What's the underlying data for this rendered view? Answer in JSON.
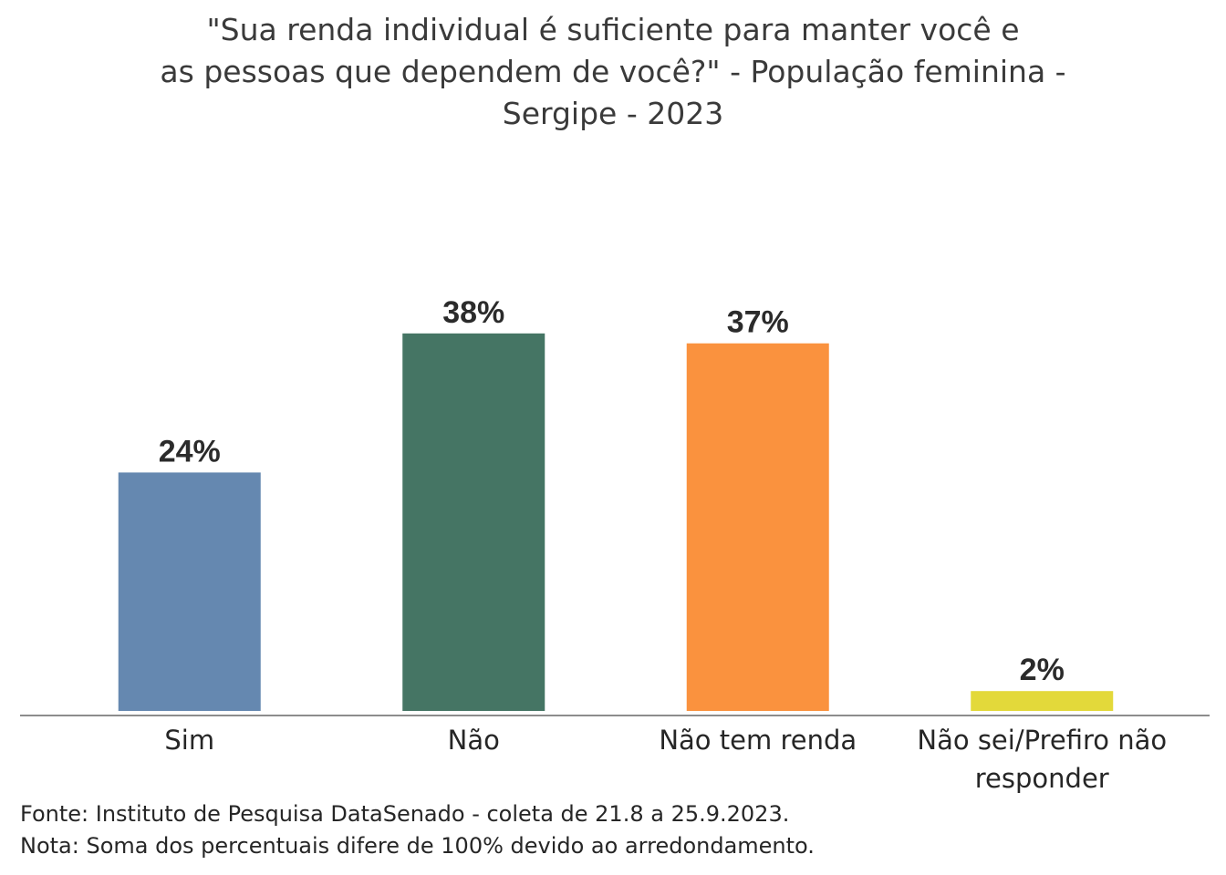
{
  "chart_data": {
    "type": "bar",
    "title_lines": [
      "\"Sua renda individual é suficiente para manter você e",
      "as pessoas que dependem de você?\" - População feminina -",
      "Sergipe - 2023"
    ],
    "categories": [
      [
        "Sim"
      ],
      [
        "Não"
      ],
      [
        "Não tem renda"
      ],
      [
        "Não sei/Prefiro não",
        "responder"
      ]
    ],
    "values": [
      24,
      38,
      37,
      2
    ],
    "value_labels": [
      "24%",
      "38%",
      "37%",
      "2%"
    ],
    "colors": [
      "#6588b0",
      "#457564",
      "#fa923e",
      "#e3d93a"
    ],
    "ylim": [
      0,
      40
    ],
    "xlabel": "",
    "ylabel": "",
    "grid": false,
    "legend": "none"
  },
  "footer": {
    "source": "Fonte: Instituto de Pesquisa DataSenado - coleta de 21.8 a 25.9.2023.",
    "note": "Nota: Soma dos percentuais difere de 100% devido ao arredondamento."
  }
}
